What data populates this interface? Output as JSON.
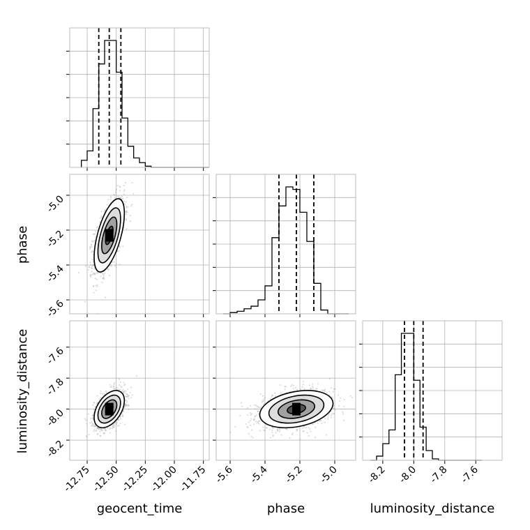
{
  "chart_data": {
    "type": "corner",
    "parameters": [
      "geocent_time",
      "phase",
      "luminosity_distance"
    ],
    "axis_labels": [
      "geocent_time",
      "phase",
      "luminosity_distance"
    ],
    "ranges": [
      [
        -12.9,
        -11.7
      ],
      [
        -5.68,
        -4.88
      ],
      [
        -8.33,
        -7.43
      ]
    ],
    "ticks": [
      [
        "-12.75",
        "-12.50",
        "-12.25",
        "-12.00",
        "-11.75"
      ],
      [
        "-5.6",
        "-5.4",
        "-5.2",
        "-5.0"
      ],
      [
        "-8.2",
        "-8.0",
        "-7.8",
        "-7.6"
      ]
    ],
    "tick_values": [
      [
        -12.75,
        -12.5,
        -12.25,
        -12.0,
        -11.75
      ],
      [
        -5.6,
        -5.4,
        -5.2,
        -5.0
      ],
      [
        -8.2,
        -8.0,
        -7.8,
        -7.6
      ]
    ],
    "quantiles": [
      [
        -12.65,
        -12.56,
        -12.46
      ],
      [
        -5.32,
        -5.22,
        -5.12
      ],
      [
        -8.06,
        -8.0,
        -7.94
      ]
    ],
    "histograms": [
      {
        "edges_start": -12.8,
        "bin_width": 0.05,
        "counts": [
          6,
          14,
          50,
          88,
          108,
          108,
          81,
          42,
          18,
          8,
          4,
          1,
          0,
          0,
          0,
          0,
          0,
          0,
          0,
          0,
          0,
          0
        ]
      },
      {
        "edges_start": -5.64,
        "bin_width": 0.04,
        "counts": [
          0,
          1,
          2,
          4,
          6,
          11,
          22,
          60,
          85,
          100,
          98,
          80,
          57,
          24,
          3,
          0,
          0,
          0
        ]
      },
      {
        "edges_start": -8.28,
        "bin_width": 0.04,
        "counts": [
          0,
          3,
          12,
          22,
          62,
          92,
          92,
          58,
          24,
          7,
          1,
          0,
          0,
          0,
          0,
          0,
          0,
          0
        ]
      }
    ],
    "pairs": [
      {
        "x": 0,
        "y": 1,
        "mean": [
          -12.56,
          -5.23
        ],
        "sd": [
          0.065,
          0.105
        ],
        "rho": 0.6
      },
      {
        "x": 0,
        "y": 2,
        "mean": [
          -12.56,
          -8.0
        ],
        "sd": [
          0.065,
          0.06
        ],
        "rho": 0.45
      },
      {
        "x": 1,
        "y": 2,
        "mean": [
          -5.22,
          -8.0
        ],
        "sd": [
          0.105,
          0.06
        ],
        "rho": 0.3
      }
    ],
    "grid": true,
    "colors": {
      "line": "#000000",
      "scatter": "#9a9a9a",
      "grid": "#b0b0b0",
      "frame": "#bbbbbb"
    }
  }
}
